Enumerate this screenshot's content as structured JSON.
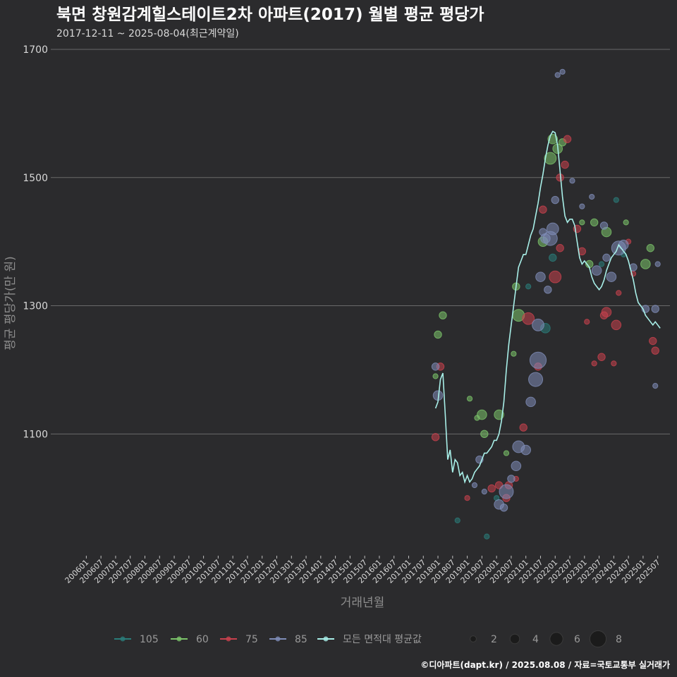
{
  "chart_data": {
    "type": "scatter",
    "title": "북면 창원감계힐스테이트2차 아파트(2017) 월별 평균 평당가",
    "subtitle": "2017-12-11 ~ 2025-08-04(최근계약일)",
    "xlabel": "거래년월",
    "ylabel": "평균 평당가(만 원)",
    "ylim": [
      910,
      1700
    ],
    "yticks": [
      1100,
      1300,
      1500,
      1700
    ],
    "x_start": "2006-01",
    "x_end": "2025-08",
    "xtick_labels": [
      "200601",
      "200607",
      "200701",
      "200707",
      "200801",
      "200807",
      "200901",
      "200907",
      "201001",
      "201007",
      "201101",
      "201107",
      "201201",
      "201207",
      "201301",
      "201307",
      "201401",
      "201407",
      "201501",
      "201507",
      "201601",
      "201607",
      "201701",
      "201707",
      "201801",
      "201807",
      "201901",
      "201907",
      "202001",
      "202007",
      "202101",
      "202107",
      "202201",
      "202207",
      "202301",
      "202307",
      "202401",
      "202407",
      "202501",
      "202507"
    ],
    "colors": {
      "105": "#2a7d7a",
      "60": "#7cc46a",
      "75": "#c9414d",
      "85": "#7f8db8",
      "avg": "#a8efe8"
    },
    "legend": {
      "series": [
        {
          "key": "105",
          "label": "105"
        },
        {
          "key": "60",
          "label": "60"
        },
        {
          "key": "75",
          "label": "75"
        },
        {
          "key": "85",
          "label": "85"
        },
        {
          "key": "avg",
          "label": "모든 면적대 평균값"
        }
      ],
      "sizes": [
        {
          "value": 2,
          "label": "2"
        },
        {
          "value": 4,
          "label": "4"
        },
        {
          "value": 6,
          "label": "6"
        },
        {
          "value": 8,
          "label": "8"
        }
      ]
    },
    "footer": "©디아파트(dapt.kr) / 2025.08.08 / 자료=국토교통부 실거래가",
    "series": [
      {
        "name": "105",
        "points": [
          {
            "x": "2018-09",
            "y": 965,
            "n": 1
          },
          {
            "x": "2019-09",
            "y": 940,
            "n": 1
          },
          {
            "x": "2020-01",
            "y": 1000,
            "n": 1
          },
          {
            "x": "2021-02",
            "y": 1330,
            "n": 1
          },
          {
            "x": "2021-09",
            "y": 1265,
            "n": 3
          },
          {
            "x": "2021-12",
            "y": 1375,
            "n": 2
          },
          {
            "x": "2023-08",
            "y": 1365,
            "n": 1
          },
          {
            "x": "2024-02",
            "y": 1465,
            "n": 1
          },
          {
            "x": "2024-05",
            "y": 1380,
            "n": 1
          }
        ]
      },
      {
        "name": "60",
        "points": [
          {
            "x": "2017-12",
            "y": 1190,
            "n": 1
          },
          {
            "x": "2018-01",
            "y": 1255,
            "n": 2
          },
          {
            "x": "2018-03",
            "y": 1285,
            "n": 2
          },
          {
            "x": "2019-02",
            "y": 1155,
            "n": 1
          },
          {
            "x": "2019-05",
            "y": 1125,
            "n": 1
          },
          {
            "x": "2019-07",
            "y": 1130,
            "n": 3
          },
          {
            "x": "2019-08",
            "y": 1100,
            "n": 2
          },
          {
            "x": "2020-02",
            "y": 1130,
            "n": 3
          },
          {
            "x": "2020-05",
            "y": 1070,
            "n": 1
          },
          {
            "x": "2020-08",
            "y": 1225,
            "n": 1
          },
          {
            "x": "2020-09",
            "y": 1330,
            "n": 2
          },
          {
            "x": "2020-10",
            "y": 1285,
            "n": 4
          },
          {
            "x": "2021-08",
            "y": 1400,
            "n": 3
          },
          {
            "x": "2021-11",
            "y": 1530,
            "n": 4
          },
          {
            "x": "2021-12",
            "y": 1560,
            "n": 3
          },
          {
            "x": "2022-02",
            "y": 1545,
            "n": 3
          },
          {
            "x": "2022-04",
            "y": 1555,
            "n": 2
          },
          {
            "x": "2022-12",
            "y": 1430,
            "n": 1
          },
          {
            "x": "2023-03",
            "y": 1365,
            "n": 2
          },
          {
            "x": "2023-05",
            "y": 1430,
            "n": 2
          },
          {
            "x": "2023-10",
            "y": 1415,
            "n": 3
          },
          {
            "x": "2024-06",
            "y": 1430,
            "n": 1
          },
          {
            "x": "2025-02",
            "y": 1365,
            "n": 3
          },
          {
            "x": "2025-04",
            "y": 1390,
            "n": 2
          }
        ]
      },
      {
        "name": "75",
        "points": [
          {
            "x": "2017-12",
            "y": 1095,
            "n": 2
          },
          {
            "x": "2018-02",
            "y": 1205,
            "n": 2
          },
          {
            "x": "2019-01",
            "y": 1000,
            "n": 1
          },
          {
            "x": "2019-11",
            "y": 1015,
            "n": 2
          },
          {
            "x": "2020-02",
            "y": 1020,
            "n": 2
          },
          {
            "x": "2020-05",
            "y": 1000,
            "n": 2
          },
          {
            "x": "2020-06",
            "y": 1020,
            "n": 2
          },
          {
            "x": "2020-09",
            "y": 1030,
            "n": 1
          },
          {
            "x": "2020-12",
            "y": 1110,
            "n": 2
          },
          {
            "x": "2021-02",
            "y": 1280,
            "n": 4
          },
          {
            "x": "2021-06",
            "y": 1205,
            "n": 2
          },
          {
            "x": "2021-08",
            "y": 1450,
            "n": 2
          },
          {
            "x": "2022-01",
            "y": 1345,
            "n": 4
          },
          {
            "x": "2022-03",
            "y": 1390,
            "n": 2
          },
          {
            "x": "2022-03",
            "y": 1500,
            "n": 2
          },
          {
            "x": "2022-05",
            "y": 1520,
            "n": 2
          },
          {
            "x": "2022-06",
            "y": 1560,
            "n": 2
          },
          {
            "x": "2022-10",
            "y": 1420,
            "n": 2
          },
          {
            "x": "2022-12",
            "y": 1385,
            "n": 2
          },
          {
            "x": "2023-02",
            "y": 1275,
            "n": 1
          },
          {
            "x": "2023-05",
            "y": 1210,
            "n": 1
          },
          {
            "x": "2023-08",
            "y": 1220,
            "n": 2
          },
          {
            "x": "2023-09",
            "y": 1285,
            "n": 2
          },
          {
            "x": "2023-10",
            "y": 1290,
            "n": 3
          },
          {
            "x": "2024-01",
            "y": 1210,
            "n": 1
          },
          {
            "x": "2024-02",
            "y": 1270,
            "n": 3
          },
          {
            "x": "2024-03",
            "y": 1320,
            "n": 1
          },
          {
            "x": "2024-07",
            "y": 1400,
            "n": 1
          },
          {
            "x": "2024-09",
            "y": 1350,
            "n": 1
          },
          {
            "x": "2025-05",
            "y": 1245,
            "n": 2
          },
          {
            "x": "2025-06",
            "y": 1230,
            "n": 2
          }
        ]
      },
      {
        "name": "85",
        "points": [
          {
            "x": "2017-12",
            "y": 1205,
            "n": 2
          },
          {
            "x": "2018-01",
            "y": 1160,
            "n": 3
          },
          {
            "x": "2019-04",
            "y": 1020,
            "n": 1
          },
          {
            "x": "2019-06",
            "y": 1060,
            "n": 2
          },
          {
            "x": "2019-08",
            "y": 1010,
            "n": 1
          },
          {
            "x": "2020-02",
            "y": 990,
            "n": 3
          },
          {
            "x": "2020-04",
            "y": 985,
            "n": 2
          },
          {
            "x": "2020-05",
            "y": 1010,
            "n": 5
          },
          {
            "x": "2020-07",
            "y": 1030,
            "n": 2
          },
          {
            "x": "2020-09",
            "y": 1050,
            "n": 3
          },
          {
            "x": "2020-10",
            "y": 1080,
            "n": 4
          },
          {
            "x": "2021-01",
            "y": 1075,
            "n": 3
          },
          {
            "x": "2021-03",
            "y": 1150,
            "n": 3
          },
          {
            "x": "2021-05",
            "y": 1185,
            "n": 5
          },
          {
            "x": "2021-06",
            "y": 1215,
            "n": 6
          },
          {
            "x": "2021-06",
            "y": 1270,
            "n": 4
          },
          {
            "x": "2021-07",
            "y": 1345,
            "n": 3
          },
          {
            "x": "2021-08",
            "y": 1415,
            "n": 2
          },
          {
            "x": "2021-09",
            "y": 1405,
            "n": 3
          },
          {
            "x": "2021-10",
            "y": 1325,
            "n": 2
          },
          {
            "x": "2021-11",
            "y": 1405,
            "n": 5
          },
          {
            "x": "2021-12",
            "y": 1420,
            "n": 4
          },
          {
            "x": "2022-01",
            "y": 1465,
            "n": 2
          },
          {
            "x": "2022-02",
            "y": 1660,
            "n": 1
          },
          {
            "x": "2022-04",
            "y": 1665,
            "n": 1
          },
          {
            "x": "2022-08",
            "y": 1495,
            "n": 1
          },
          {
            "x": "2022-12",
            "y": 1455,
            "n": 1
          },
          {
            "x": "2023-04",
            "y": 1470,
            "n": 1
          },
          {
            "x": "2023-06",
            "y": 1355,
            "n": 3
          },
          {
            "x": "2023-09",
            "y": 1425,
            "n": 2
          },
          {
            "x": "2023-10",
            "y": 1375,
            "n": 2
          },
          {
            "x": "2023-12",
            "y": 1345,
            "n": 3
          },
          {
            "x": "2024-03",
            "y": 1390,
            "n": 5
          },
          {
            "x": "2024-05",
            "y": 1395,
            "n": 3
          },
          {
            "x": "2024-09",
            "y": 1360,
            "n": 2
          },
          {
            "x": "2025-02",
            "y": 1295,
            "n": 2
          },
          {
            "x": "2025-06",
            "y": 1295,
            "n": 2
          },
          {
            "x": "2025-07",
            "y": 1365,
            "n": 1
          },
          {
            "x": "2025-06",
            "y": 1175,
            "n": 1
          }
        ]
      }
    ],
    "average_line": [
      {
        "x": "2017-12",
        "y": 1140
      },
      {
        "x": "2018-01",
        "y": 1150
      },
      {
        "x": "2018-02",
        "y": 1185
      },
      {
        "x": "2018-03",
        "y": 1195
      },
      {
        "x": "2018-04",
        "y": 1130
      },
      {
        "x": "2018-05",
        "y": 1060
      },
      {
        "x": "2018-06",
        "y": 1075
      },
      {
        "x": "2018-07",
        "y": 1040
      },
      {
        "x": "2018-08",
        "y": 1060
      },
      {
        "x": "2018-09",
        "y": 1055
      },
      {
        "x": "2018-10",
        "y": 1035
      },
      {
        "x": "2018-11",
        "y": 1040
      },
      {
        "x": "2018-12",
        "y": 1025
      },
      {
        "x": "2019-01",
        "y": 1035
      },
      {
        "x": "2019-02",
        "y": 1025
      },
      {
        "x": "2019-03",
        "y": 1030
      },
      {
        "x": "2019-04",
        "y": 1040
      },
      {
        "x": "2019-05",
        "y": 1045
      },
      {
        "x": "2019-06",
        "y": 1050
      },
      {
        "x": "2019-07",
        "y": 1060
      },
      {
        "x": "2019-08",
        "y": 1070
      },
      {
        "x": "2019-09",
        "y": 1070
      },
      {
        "x": "2019-10",
        "y": 1075
      },
      {
        "x": "2019-11",
        "y": 1080
      },
      {
        "x": "2019-12",
        "y": 1090
      },
      {
        "x": "2020-01",
        "y": 1090
      },
      {
        "x": "2020-02",
        "y": 1100
      },
      {
        "x": "2020-03",
        "y": 1120
      },
      {
        "x": "2020-04",
        "y": 1150
      },
      {
        "x": "2020-05",
        "y": 1200
      },
      {
        "x": "2020-06",
        "y": 1240
      },
      {
        "x": "2020-07",
        "y": 1270
      },
      {
        "x": "2020-08",
        "y": 1300
      },
      {
        "x": "2020-09",
        "y": 1330
      },
      {
        "x": "2020-10",
        "y": 1360
      },
      {
        "x": "2020-11",
        "y": 1370
      },
      {
        "x": "2020-12",
        "y": 1380
      },
      {
        "x": "2021-01",
        "y": 1380
      },
      {
        "x": "2021-02",
        "y": 1395
      },
      {
        "x": "2021-03",
        "y": 1410
      },
      {
        "x": "2021-04",
        "y": 1420
      },
      {
        "x": "2021-05",
        "y": 1440
      },
      {
        "x": "2021-06",
        "y": 1460
      },
      {
        "x": "2021-07",
        "y": 1485
      },
      {
        "x": "2021-08",
        "y": 1505
      },
      {
        "x": "2021-09",
        "y": 1530
      },
      {
        "x": "2021-10",
        "y": 1550
      },
      {
        "x": "2021-11",
        "y": 1565
      },
      {
        "x": "2021-12",
        "y": 1572
      },
      {
        "x": "2022-01",
        "y": 1570
      },
      {
        "x": "2022-02",
        "y": 1550
      },
      {
        "x": "2022-03",
        "y": 1510
      },
      {
        "x": "2022-04",
        "y": 1470
      },
      {
        "x": "2022-05",
        "y": 1440
      },
      {
        "x": "2022-06",
        "y": 1430
      },
      {
        "x": "2022-07",
        "y": 1435
      },
      {
        "x": "2022-08",
        "y": 1435
      },
      {
        "x": "2022-09",
        "y": 1425
      },
      {
        "x": "2022-10",
        "y": 1400
      },
      {
        "x": "2022-11",
        "y": 1375
      },
      {
        "x": "2022-12",
        "y": 1365
      },
      {
        "x": "2023-01",
        "y": 1370
      },
      {
        "x": "2023-02",
        "y": 1365
      },
      {
        "x": "2023-03",
        "y": 1360
      },
      {
        "x": "2023-04",
        "y": 1345
      },
      {
        "x": "2023-05",
        "y": 1335
      },
      {
        "x": "2023-06",
        "y": 1330
      },
      {
        "x": "2023-07",
        "y": 1325
      },
      {
        "x": "2023-08",
        "y": 1330
      },
      {
        "x": "2023-09",
        "y": 1340
      },
      {
        "x": "2023-10",
        "y": 1355
      },
      {
        "x": "2023-11",
        "y": 1365
      },
      {
        "x": "2023-12",
        "y": 1375
      },
      {
        "x": "2024-01",
        "y": 1380
      },
      {
        "x": "2024-02",
        "y": 1385
      },
      {
        "x": "2024-03",
        "y": 1395
      },
      {
        "x": "2024-04",
        "y": 1390
      },
      {
        "x": "2024-05",
        "y": 1385
      },
      {
        "x": "2024-06",
        "y": 1380
      },
      {
        "x": "2024-07",
        "y": 1370
      },
      {
        "x": "2024-08",
        "y": 1355
      },
      {
        "x": "2024-09",
        "y": 1340
      },
      {
        "x": "2024-10",
        "y": 1320
      },
      {
        "x": "2024-11",
        "y": 1305
      },
      {
        "x": "2024-12",
        "y": 1300
      },
      {
        "x": "2025-01",
        "y": 1295
      },
      {
        "x": "2025-02",
        "y": 1285
      },
      {
        "x": "2025-03",
        "y": 1280
      },
      {
        "x": "2025-04",
        "y": 1275
      },
      {
        "x": "2025-05",
        "y": 1270
      },
      {
        "x": "2025-06",
        "y": 1275
      },
      {
        "x": "2025-07",
        "y": 1270
      },
      {
        "x": "2025-08",
        "y": 1265
      }
    ]
  }
}
